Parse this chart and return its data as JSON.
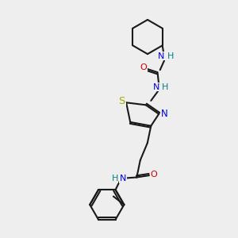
{
  "bg_color": "#eeeeee",
  "bond_color": "#1a1a1a",
  "N_color": "#0000dd",
  "NH_color": "#008080",
  "O_color": "#cc0000",
  "S_color": "#aaaa00",
  "line_width": 1.5,
  "font_size": 8.0,
  "xlim": [
    0,
    10
  ],
  "ylim": [
    0,
    10
  ]
}
